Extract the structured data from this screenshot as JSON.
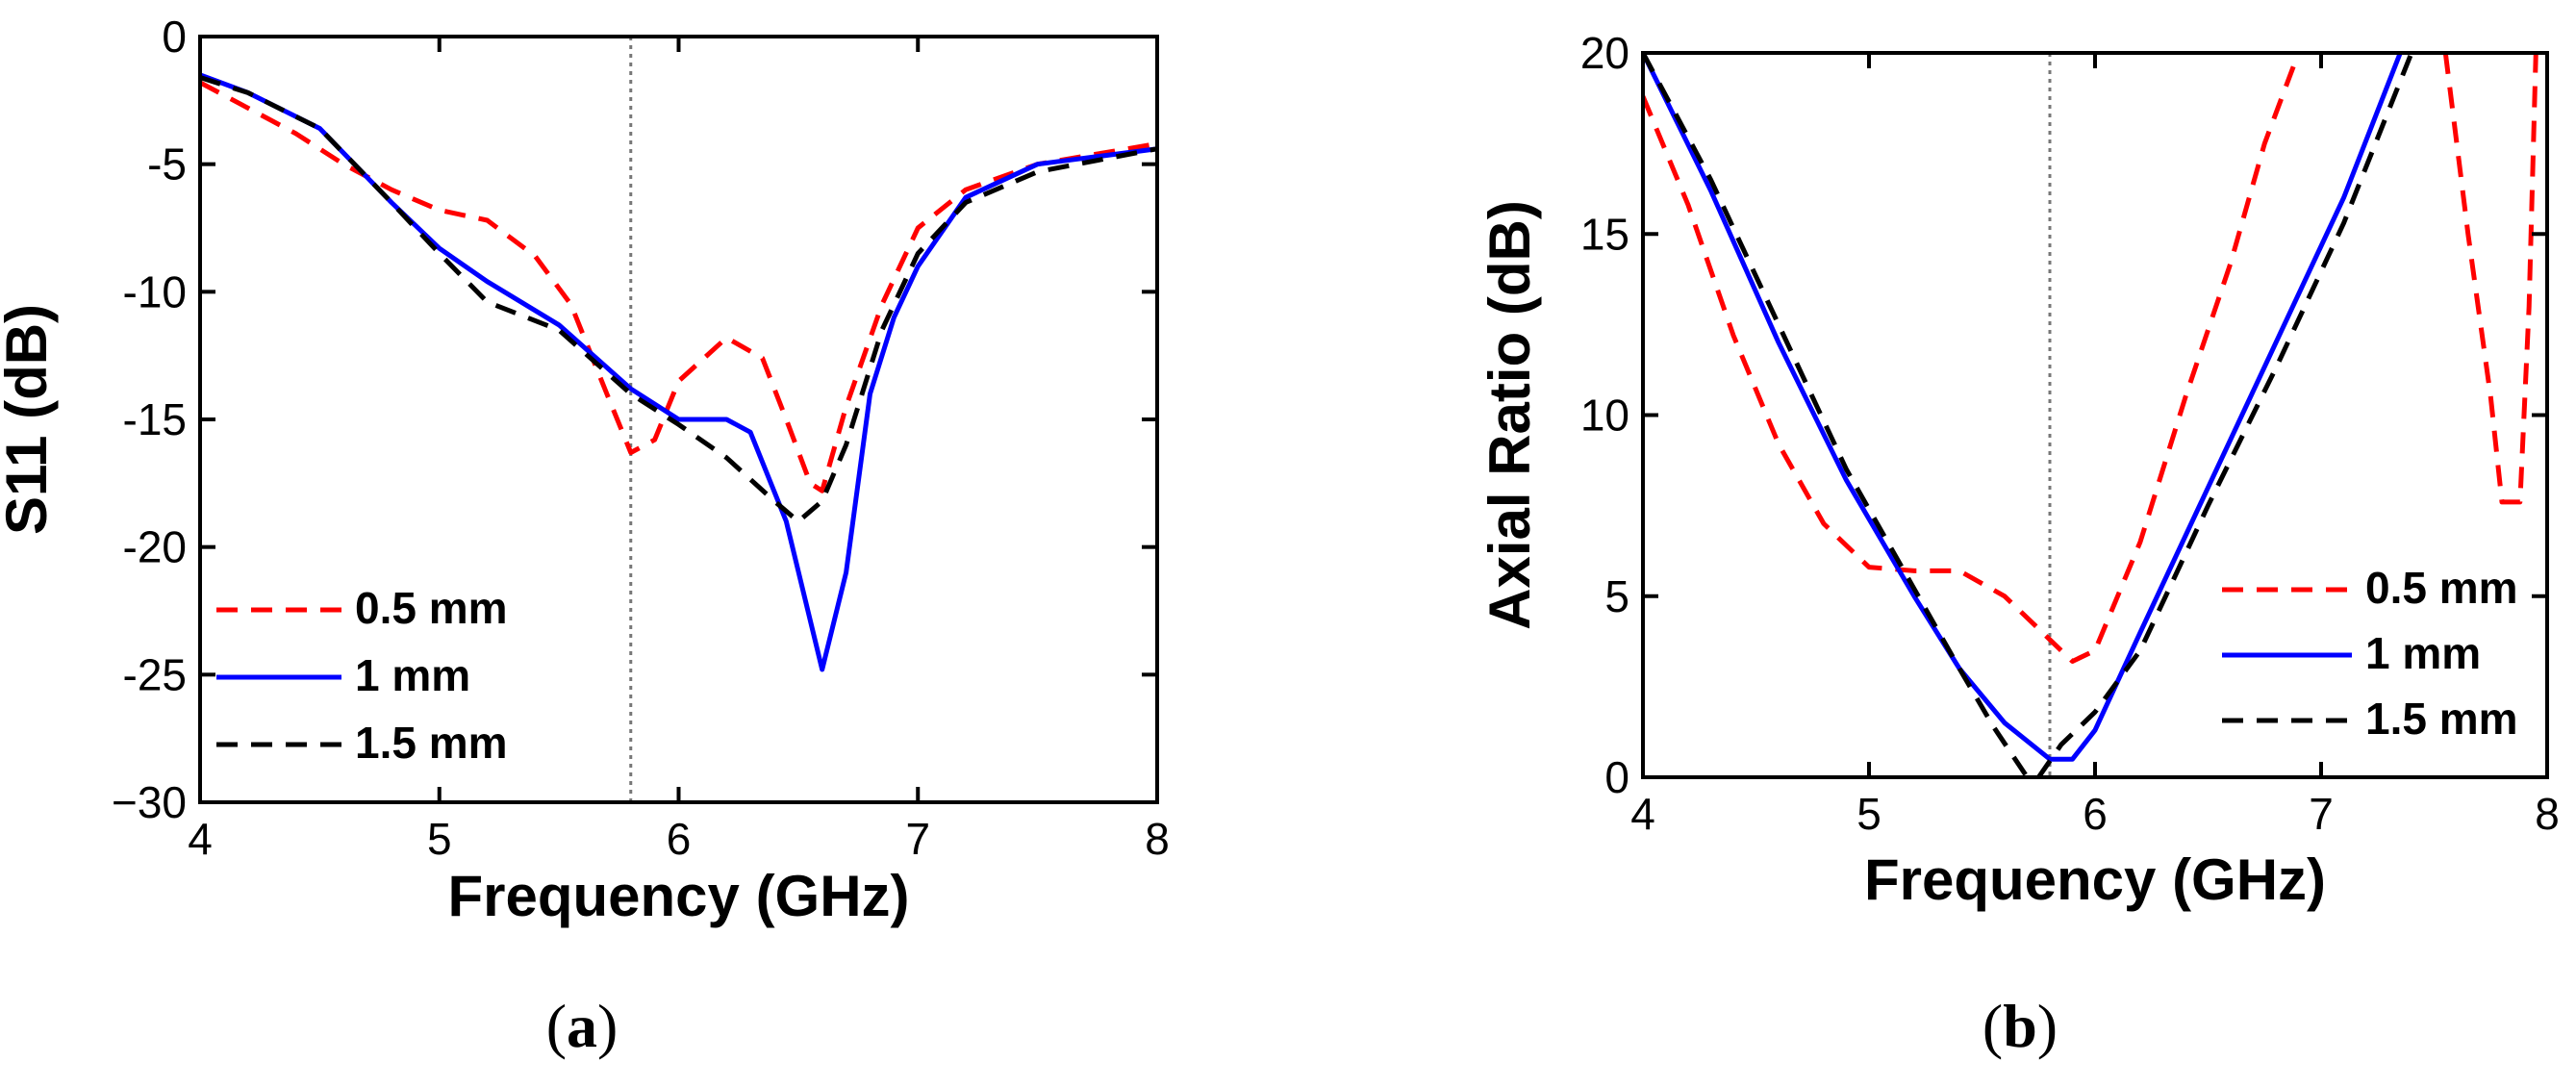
{
  "chart_data": [
    {
      "type": "line",
      "panel": "a",
      "caption_open": "(",
      "caption_letter": "a",
      "caption_close": ")",
      "xlabel": "Frequency (GHz)",
      "ylabel": "S11 (dB)",
      "xlim": [
        4,
        8
      ],
      "ylim": [
        -30,
        0
      ],
      "xticks": [
        4,
        5,
        6,
        7,
        8
      ],
      "yticks": [
        0,
        -5,
        -10,
        -15,
        -20,
        -25,
        -30
      ],
      "ytick_labels": [
        "0",
        "-5",
        "-10",
        "-15",
        "-20",
        "-25",
        "−30"
      ],
      "vline_x": 5.8,
      "legend_position": "bottom-left",
      "series": [
        {
          "name": "0.5 mm",
          "color": "#ff0000",
          "style": "dashed",
          "points": [
            [
              4.0,
              -1.8
            ],
            [
              4.2,
              -2.8
            ],
            [
              4.4,
              -3.8
            ],
            [
              4.6,
              -5.0
            ],
            [
              4.8,
              -6.0
            ],
            [
              5.0,
              -6.8
            ],
            [
              5.2,
              -7.2
            ],
            [
              5.4,
              -8.6
            ],
            [
              5.55,
              -10.5
            ],
            [
              5.7,
              -14.0
            ],
            [
              5.8,
              -16.3
            ],
            [
              5.9,
              -15.8
            ],
            [
              6.0,
              -13.5
            ],
            [
              6.2,
              -11.8
            ],
            [
              6.35,
              -12.6
            ],
            [
              6.45,
              -15.0
            ],
            [
              6.55,
              -17.5
            ],
            [
              6.6,
              -17.8
            ],
            [
              6.7,
              -14.5
            ],
            [
              6.85,
              -10.5
            ],
            [
              7.0,
              -7.5
            ],
            [
              7.2,
              -6.0
            ],
            [
              7.5,
              -5.0
            ],
            [
              8.0,
              -4.2
            ]
          ]
        },
        {
          "name": "1 mm",
          "color": "#0000ff",
          "style": "solid",
          "points": [
            [
              4.0,
              -1.5
            ],
            [
              4.2,
              -2.2
            ],
            [
              4.5,
              -3.6
            ],
            [
              4.8,
              -6.5
            ],
            [
              5.0,
              -8.3
            ],
            [
              5.2,
              -9.6
            ],
            [
              5.5,
              -11.3
            ],
            [
              5.8,
              -13.8
            ],
            [
              6.0,
              -15.0
            ],
            [
              6.2,
              -15.0
            ],
            [
              6.3,
              -15.5
            ],
            [
              6.45,
              -19.0
            ],
            [
              6.6,
              -24.8
            ],
            [
              6.7,
              -21.0
            ],
            [
              6.8,
              -14.0
            ],
            [
              6.9,
              -11.0
            ],
            [
              7.0,
              -9.0
            ],
            [
              7.2,
              -6.3
            ],
            [
              7.5,
              -5.0
            ],
            [
              8.0,
              -4.4
            ]
          ]
        },
        {
          "name": "1.5 mm",
          "color": "#000000",
          "style": "dashed",
          "points": [
            [
              4.0,
              -1.6
            ],
            [
              4.2,
              -2.2
            ],
            [
              4.5,
              -3.6
            ],
            [
              4.8,
              -6.5
            ],
            [
              5.0,
              -8.5
            ],
            [
              5.2,
              -10.4
            ],
            [
              5.5,
              -11.5
            ],
            [
              5.8,
              -14.0
            ],
            [
              6.0,
              -15.2
            ],
            [
              6.2,
              -16.5
            ],
            [
              6.4,
              -18.2
            ],
            [
              6.5,
              -19.0
            ],
            [
              6.6,
              -18.2
            ],
            [
              6.7,
              -16.0
            ],
            [
              6.85,
              -11.5
            ],
            [
              7.0,
              -8.5
            ],
            [
              7.2,
              -6.5
            ],
            [
              7.5,
              -5.3
            ],
            [
              8.0,
              -4.4
            ]
          ]
        }
      ]
    },
    {
      "type": "line",
      "panel": "b",
      "caption_open": "(",
      "caption_letter": "b",
      "caption_close": ")",
      "xlabel": "Frequency (GHz)",
      "ylabel": "Axial Ratio (dB)",
      "xlim": [
        4,
        8
      ],
      "ylim": [
        0,
        20
      ],
      "xticks": [
        4,
        5,
        6,
        7,
        8
      ],
      "yticks": [
        0,
        5,
        10,
        15,
        20
      ],
      "ytick_labels": [
        "0",
        "5",
        "10",
        "15",
        "20"
      ],
      "vline_x": 5.8,
      "legend_position": "bottom-right",
      "series": [
        {
          "name": "0.5 mm",
          "color": "#ff0000",
          "style": "dashed",
          "points": [
            [
              4.0,
              18.8
            ],
            [
              4.2,
              15.8
            ],
            [
              4.4,
              12.2
            ],
            [
              4.6,
              9.2
            ],
            [
              4.8,
              7.0
            ],
            [
              5.0,
              5.8
            ],
            [
              5.2,
              5.7
            ],
            [
              5.4,
              5.7
            ],
            [
              5.6,
              5.0
            ],
            [
              5.8,
              3.8
            ],
            [
              5.9,
              3.2
            ],
            [
              6.0,
              3.5
            ],
            [
              6.2,
              6.5
            ],
            [
              6.4,
              10.5
            ],
            [
              6.6,
              14.2
            ],
            [
              6.75,
              17.5
            ],
            [
              6.9,
              20.0
            ]
          ],
          "points_2": [
            [
              7.55,
              20.0
            ],
            [
              7.65,
              15.0
            ],
            [
              7.75,
              10.5
            ],
            [
              7.8,
              7.6
            ],
            [
              7.88,
              7.6
            ],
            [
              7.92,
              13.0
            ],
            [
              7.95,
              20.0
            ]
          ]
        },
        {
          "name": "1 mm",
          "color": "#0000ff",
          "style": "solid",
          "points": [
            [
              4.0,
              20.0
            ],
            [
              4.3,
              16.2
            ],
            [
              4.6,
              12.0
            ],
            [
              4.9,
              8.2
            ],
            [
              5.2,
              5.0
            ],
            [
              5.4,
              3.0
            ],
            [
              5.6,
              1.5
            ],
            [
              5.8,
              0.5
            ],
            [
              5.9,
              0.5
            ],
            [
              6.0,
              1.3
            ],
            [
              6.2,
              4.0
            ],
            [
              6.5,
              8.0
            ],
            [
              6.8,
              12.0
            ],
            [
              7.1,
              16.0
            ],
            [
              7.35,
              20.0
            ]
          ]
        },
        {
          "name": "1.5 mm",
          "color": "#000000",
          "style": "dashed",
          "points": [
            [
              4.0,
              20.0
            ],
            [
              4.3,
              16.5
            ],
            [
              4.6,
              12.5
            ],
            [
              4.9,
              8.5
            ],
            [
              5.2,
              5.2
            ],
            [
              5.4,
              3.0
            ],
            [
              5.55,
              1.4
            ],
            [
              5.7,
              0.0
            ],
            [
              5.75,
              0.0
            ],
            [
              5.85,
              0.9
            ],
            [
              6.0,
              1.8
            ],
            [
              6.2,
              3.5
            ],
            [
              6.5,
              7.5
            ],
            [
              6.8,
              11.3
            ],
            [
              7.1,
              15.3
            ],
            [
              7.4,
              20.0
            ]
          ]
        }
      ]
    }
  ]
}
